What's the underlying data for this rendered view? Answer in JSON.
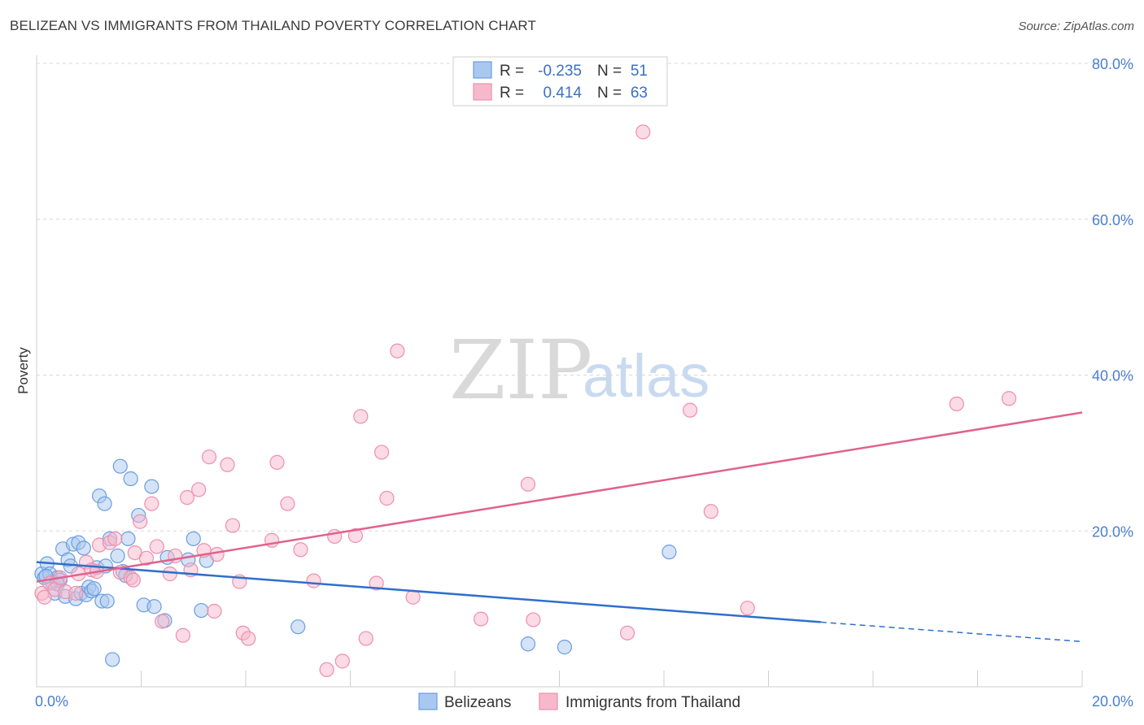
{
  "title": "BELIZEAN VS IMMIGRANTS FROM THAILAND POVERTY CORRELATION CHART",
  "source": "Source: ZipAtlas.com",
  "watermark": {
    "zip": "ZIP",
    "atlas": "atlas"
  },
  "colors": {
    "blue_fill": "#a9c8f0",
    "blue_stroke": "#6a9ee0",
    "blue_line": "#2f6fcc",
    "pink_fill": "#f7b8cc",
    "pink_stroke": "#ee8fac",
    "pink_line": "#e0628f",
    "grid": "#d8d8d8",
    "tick_text": "#4a7ecf"
  },
  "chart_data": {
    "type": "scatter",
    "title": "BELIZEAN VS IMMIGRANTS FROM THAILAND POVERTY CORRELATION CHART",
    "ylabel": "Poverty",
    "xlabel": "",
    "xlim": [
      0,
      20
    ],
    "ylim": [
      0,
      80
    ],
    "x_tick_labels": [
      "0.0%",
      "20.0%"
    ],
    "y_ticks": [
      20,
      40,
      60,
      80
    ],
    "y_tick_labels": [
      "20.0%",
      "40.0%",
      "60.0%",
      "80.0%"
    ],
    "grid": true,
    "legend_placement": "top-center",
    "stats": [
      {
        "r_label": "R =",
        "r_value": "-0.235",
        "n_label": "N =",
        "n_value": "51"
      },
      {
        "r_label": "R =",
        "r_value": "0.414",
        "n_label": "N =",
        "n_value": "63"
      }
    ],
    "series": [
      {
        "name": "Belizeans",
        "trend": {
          "x0": 0.0,
          "y0": 16.0,
          "x1": 15.0,
          "y1": 8.3,
          "dash_x1": 20.0,
          "dash_y1": 5.8
        },
        "points": [
          [
            0.1,
            14.5
          ],
          [
            0.15,
            14.0
          ],
          [
            0.2,
            15.8
          ],
          [
            0.25,
            14.5
          ],
          [
            0.3,
            13.4
          ],
          [
            0.35,
            12.0
          ],
          [
            0.4,
            14.0
          ],
          [
            0.45,
            13.7
          ],
          [
            0.5,
            17.7
          ],
          [
            0.55,
            11.6
          ],
          [
            0.6,
            16.3
          ],
          [
            0.65,
            15.5
          ],
          [
            0.7,
            18.3
          ],
          [
            0.75,
            11.3
          ],
          [
            0.8,
            18.5
          ],
          [
            0.85,
            12.0
          ],
          [
            0.9,
            17.8
          ],
          [
            0.95,
            11.8
          ],
          [
            1.0,
            12.8
          ],
          [
            1.05,
            12.3
          ],
          [
            1.1,
            12.6
          ],
          [
            1.15,
            15.3
          ],
          [
            1.2,
            24.5
          ],
          [
            1.25,
            11.0
          ],
          [
            1.3,
            23.5
          ],
          [
            1.32,
            15.5
          ],
          [
            1.35,
            11.0
          ],
          [
            1.4,
            19.0
          ],
          [
            1.45,
            3.5
          ],
          [
            1.55,
            16.8
          ],
          [
            1.6,
            28.3
          ],
          [
            1.65,
            14.8
          ],
          [
            1.7,
            14.3
          ],
          [
            1.75,
            19.0
          ],
          [
            1.8,
            26.7
          ],
          [
            1.95,
            22.0
          ],
          [
            2.05,
            10.5
          ],
          [
            2.2,
            25.7
          ],
          [
            2.25,
            10.3
          ],
          [
            2.45,
            8.5
          ],
          [
            2.5,
            16.6
          ],
          [
            2.9,
            16.3
          ],
          [
            3.0,
            19.0
          ],
          [
            3.15,
            9.8
          ],
          [
            3.25,
            16.2
          ],
          [
            5.0,
            7.7
          ],
          [
            9.4,
            5.5
          ],
          [
            10.1,
            5.1
          ],
          [
            12.1,
            17.3
          ],
          [
            0.18,
            14.2
          ],
          [
            0.4,
            13.2
          ]
        ]
      },
      {
        "name": "Immigrants from Thailand",
        "trend": {
          "x0": 0.0,
          "y0": 13.5,
          "x1": 20.0,
          "y1": 35.2
        },
        "points": [
          [
            0.1,
            12.0
          ],
          [
            0.15,
            11.5
          ],
          [
            0.25,
            13.3
          ],
          [
            0.35,
            12.5
          ],
          [
            0.45,
            14.0
          ],
          [
            0.55,
            12.2
          ],
          [
            0.75,
            12.0
          ],
          [
            0.8,
            14.5
          ],
          [
            0.95,
            16.0
          ],
          [
            1.05,
            15.0
          ],
          [
            1.15,
            14.8
          ],
          [
            1.2,
            18.2
          ],
          [
            1.4,
            18.5
          ],
          [
            1.5,
            19.0
          ],
          [
            1.6,
            14.7
          ],
          [
            1.8,
            14.0
          ],
          [
            1.85,
            13.7
          ],
          [
            1.88,
            17.2
          ],
          [
            1.98,
            21.2
          ],
          [
            2.1,
            16.5
          ],
          [
            2.2,
            23.5
          ],
          [
            2.3,
            18.0
          ],
          [
            2.4,
            8.4
          ],
          [
            2.55,
            14.5
          ],
          [
            2.65,
            16.8
          ],
          [
            2.8,
            6.6
          ],
          [
            2.88,
            24.3
          ],
          [
            2.95,
            15.0
          ],
          [
            3.1,
            25.3
          ],
          [
            3.2,
            17.5
          ],
          [
            3.3,
            29.5
          ],
          [
            3.4,
            9.7
          ],
          [
            3.45,
            17.0
          ],
          [
            3.65,
            28.5
          ],
          [
            3.75,
            20.7
          ],
          [
            3.88,
            13.5
          ],
          [
            3.95,
            6.9
          ],
          [
            4.05,
            6.2
          ],
          [
            4.5,
            18.8
          ],
          [
            4.6,
            28.8
          ],
          [
            4.8,
            23.5
          ],
          [
            5.05,
            17.6
          ],
          [
            5.3,
            13.6
          ],
          [
            5.55,
            2.2
          ],
          [
            5.7,
            19.3
          ],
          [
            5.85,
            3.3
          ],
          [
            6.1,
            19.4
          ],
          [
            6.2,
            34.7
          ],
          [
            6.3,
            6.2
          ],
          [
            6.5,
            13.3
          ],
          [
            6.6,
            30.1
          ],
          [
            6.7,
            24.2
          ],
          [
            6.9,
            43.1
          ],
          [
            7.2,
            11.5
          ],
          [
            8.5,
            8.7
          ],
          [
            9.4,
            26.0
          ],
          [
            9.5,
            8.6
          ],
          [
            11.3,
            6.9
          ],
          [
            11.6,
            71.2
          ],
          [
            12.5,
            35.5
          ],
          [
            12.9,
            22.5
          ],
          [
            13.6,
            10.1
          ],
          [
            17.6,
            36.3
          ]
        ]
      }
    ],
    "extra_points": {
      "series": "Immigrants from Thailand",
      "points": [
        [
          18.6,
          37.0
        ]
      ]
    }
  }
}
